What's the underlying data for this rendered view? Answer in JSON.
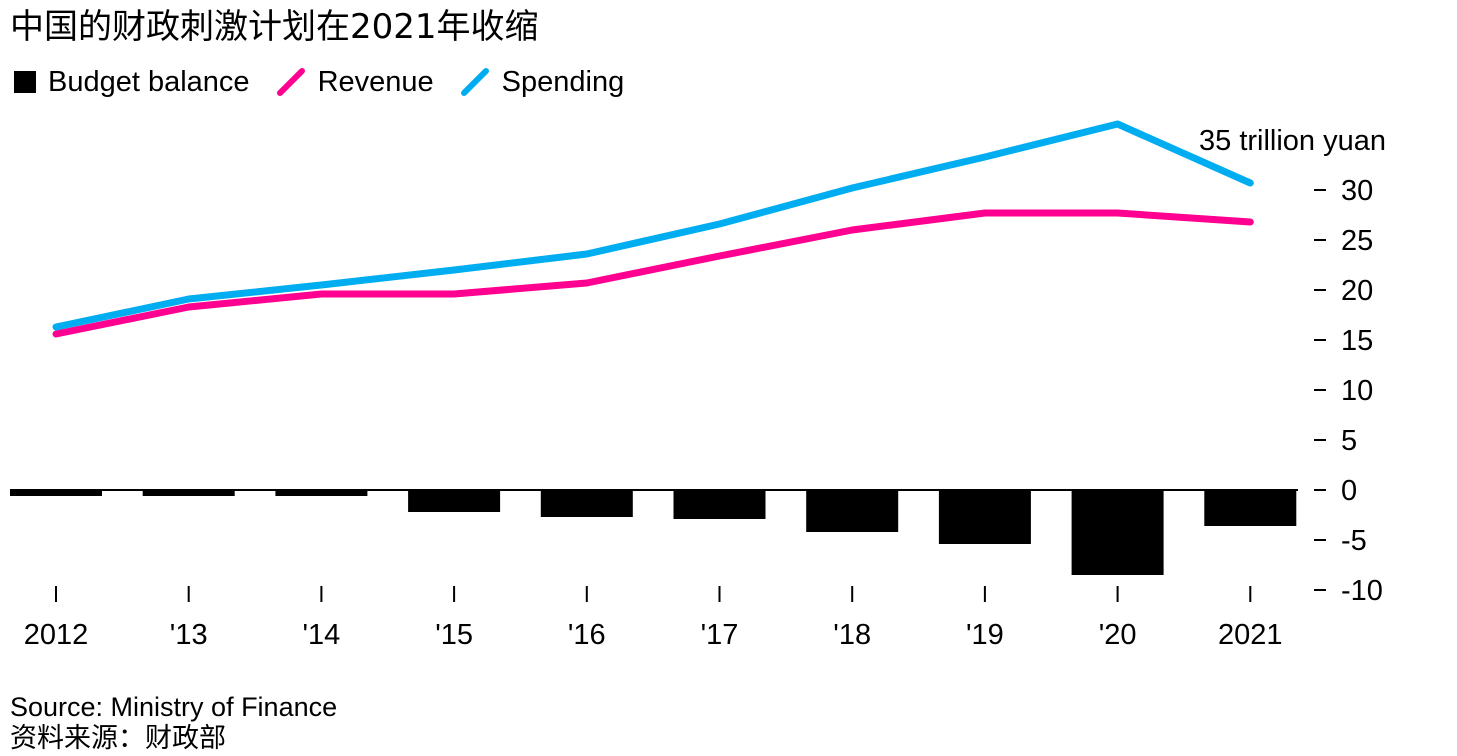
{
  "title": "中国的财政刺激计划在2021年收缩",
  "legend": [
    {
      "label": "Budget balance",
      "color": "#000000",
      "shape": "square"
    },
    {
      "label": "Revenue",
      "color": "#ff0090",
      "shape": "line"
    },
    {
      "label": "Spending",
      "color": "#00adf0",
      "shape": "line"
    }
  ],
  "source": "Source: Ministry of Finance",
  "source_cn": "资料来源：财政部",
  "chart_data": {
    "type": "bar+line",
    "categories": [
      "2012",
      "'13",
      "'14",
      "'15",
      "'16",
      "'17",
      "'18",
      "'19",
      "'20",
      "2021"
    ],
    "series": [
      {
        "name": "Budget balance",
        "type": "bar",
        "color": "#000000",
        "values": [
          -0.6,
          -0.6,
          -0.6,
          -2.2,
          -2.7,
          -2.9,
          -4.2,
          -5.4,
          -8.5,
          -3.6
        ]
      },
      {
        "name": "Revenue",
        "type": "line",
        "color": "#ff0090",
        "values": [
          15.6,
          18.3,
          19.6,
          19.6,
          20.7,
          23.4,
          26.0,
          27.7,
          27.7,
          26.8
        ]
      },
      {
        "name": "Spending",
        "type": "line",
        "color": "#00adf0",
        "values": [
          16.3,
          19.1,
          20.5,
          22.0,
          23.6,
          26.6,
          30.2,
          33.3,
          36.6,
          30.7
        ]
      }
    ],
    "yticks": [
      35,
      30,
      25,
      20,
      15,
      10,
      5,
      0,
      -5,
      -10
    ],
    "ytick_labels": [
      "35 trillion yuan",
      "30",
      "25",
      "20",
      "15",
      "10",
      "5",
      "0",
      "-5",
      "-10"
    ],
    "ylim": [
      -10,
      36.6
    ],
    "yaxis_position": "right",
    "grid": false,
    "legend_position": "top-left"
  }
}
